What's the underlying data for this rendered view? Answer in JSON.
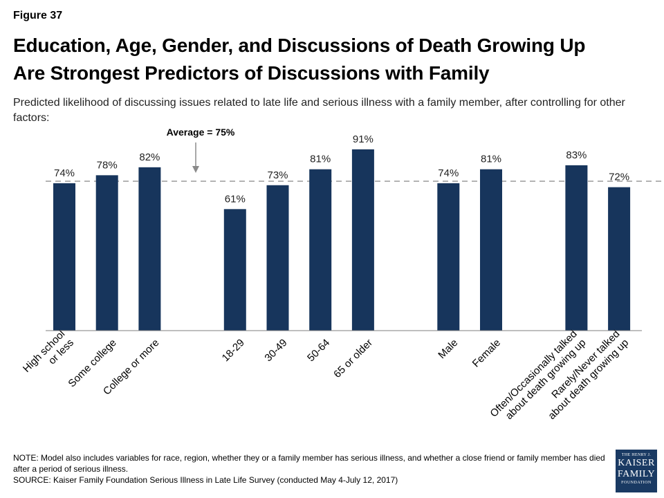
{
  "figure_label": "Figure 37",
  "title_line1": "Education, Age, Gender, and Discussions of Death Growing Up",
  "title_line2": "Are Strongest Predictors of Discussions with Family",
  "subtitle": "Predicted likelihood of discussing issues related to late life and serious illness with a family member, after controlling for other factors:",
  "chart_data": {
    "type": "bar",
    "categories": [
      "High school or less",
      "Some college",
      "College or more",
      "18-29",
      "30-49",
      "50-64",
      "65 or older",
      "Male",
      "Female",
      "Often/Occasionally talked about death growing up",
      "Rarely/Never talked about death growing up"
    ],
    "category_lines": [
      [
        "High school",
        "or less"
      ],
      [
        "Some college"
      ],
      [
        "College or more"
      ],
      [
        "18-29"
      ],
      [
        "30-49"
      ],
      [
        "50-64"
      ],
      [
        "65 or older"
      ],
      [
        "Male"
      ],
      [
        "Female"
      ],
      [
        "Often/Occasionally talked",
        "about death growing up"
      ],
      [
        "Rarely/Never talked",
        "about death growing up"
      ]
    ],
    "values": [
      74,
      78,
      82,
      61,
      73,
      81,
      91,
      74,
      81,
      83,
      72
    ],
    "data_labels": [
      "74%",
      "78%",
      "82%",
      "61%",
      "73%",
      "81%",
      "91%",
      "74%",
      "81%",
      "83%",
      "72%"
    ],
    "groups": [
      [
        0,
        1,
        2
      ],
      [
        3,
        4,
        5,
        6
      ],
      [
        7,
        8
      ],
      [
        9,
        10
      ]
    ],
    "ylim": [
      0,
      100
    ],
    "reference_line": {
      "value": 75,
      "label": "Average = 75%"
    },
    "bar_color": "#17355c",
    "grid": false,
    "legend": "none"
  },
  "note_line1": "NOTE: Model also includes variables for race, region, whether they or a family member has serious illness, and whether a close friend or family member has died after a period of serious illness.",
  "source_line": "SOURCE: Kaiser Family Foundation Serious Illness in Late Life Survey (conducted May 4-July 12, 2017)",
  "logo": {
    "line1": "THE HENRY J.",
    "line2": "KAISER",
    "line3": "FAMILY",
    "line4": "FOUNDATION"
  }
}
